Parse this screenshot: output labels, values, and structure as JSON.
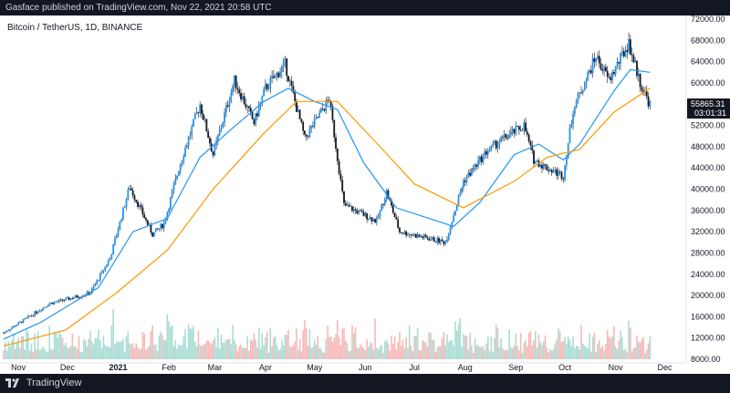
{
  "header": {
    "published": "Gasface published on TradingView.com, Nov 22, 2021 20:58 UTC"
  },
  "footer": {
    "brand": "TradingView"
  },
  "chart_data": {
    "type": "candlestick",
    "symbol_label": "Bitcoin / TetherUS, 1D, BINANCE",
    "y_ticks": [
      "72000.00",
      "68000.00",
      "64000.00",
      "60000.00",
      "56000.00",
      "52000.00",
      "48000.00",
      "44000.00",
      "40000.00",
      "36000.00",
      "32000.00",
      "28000.00",
      "24000.00",
      "20000.00",
      "16000.00",
      "12000.00",
      "8000.00"
    ],
    "y_range": [
      8000,
      72000
    ],
    "x_ticks": [
      {
        "label": "Nov",
        "date": "2020-11-01"
      },
      {
        "label": "Dec",
        "date": "2020-12-01"
      },
      {
        "label": "2021",
        "date": "2021-01-01",
        "bold": true
      },
      {
        "label": "Feb",
        "date": "2021-02-01"
      },
      {
        "label": "Mar",
        "date": "2021-03-01"
      },
      {
        "label": "Apr",
        "date": "2021-04-01"
      },
      {
        "label": "May",
        "date": "2021-05-01"
      },
      {
        "label": "Jun",
        "date": "2021-06-01"
      },
      {
        "label": "Jul",
        "date": "2021-07-01"
      },
      {
        "label": "Aug",
        "date": "2021-08-01"
      },
      {
        "label": "Sep",
        "date": "2021-09-01"
      },
      {
        "label": "Oct",
        "date": "2021-10-01"
      },
      {
        "label": "Nov",
        "date": "2021-11-01"
      },
      {
        "label": "Dec",
        "date": "2021-12-01"
      }
    ],
    "x_range": [
      "2020-10-23",
      "2021-12-13"
    ],
    "last_price": "55865.31",
    "countdown": "03:01:31",
    "price_path": [
      [
        "2020-10-23",
        13000
      ],
      [
        "2020-11-05",
        15500
      ],
      [
        "2020-11-20",
        18500
      ],
      [
        "2020-11-30",
        19200
      ],
      [
        "2020-12-15",
        20500
      ],
      [
        "2020-12-27",
        27000
      ],
      [
        "2021-01-08",
        40500
      ],
      [
        "2021-01-15",
        36000
      ],
      [
        "2021-01-22",
        31500
      ],
      [
        "2021-01-29",
        33500
      ],
      [
        "2021-02-08",
        45000
      ],
      [
        "2021-02-20",
        56000
      ],
      [
        "2021-02-28",
        46500
      ],
      [
        "2021-03-13",
        60500
      ],
      [
        "2021-03-25",
        52500
      ],
      [
        "2021-04-01",
        59000
      ],
      [
        "2021-04-13",
        63500
      ],
      [
        "2021-04-25",
        49500
      ],
      [
        "2021-05-10",
        57000
      ],
      [
        "2021-05-19",
        37000
      ],
      [
        "2021-06-08",
        34000
      ],
      [
        "2021-06-14",
        39500
      ],
      [
        "2021-06-22",
        32000
      ],
      [
        "2021-07-20",
        30000
      ],
      [
        "2021-07-31",
        41500
      ],
      [
        "2021-08-14",
        47000
      ],
      [
        "2021-08-22",
        49000
      ],
      [
        "2021-09-06",
        52000
      ],
      [
        "2021-09-12",
        45500
      ],
      [
        "2021-09-20",
        44000
      ],
      [
        "2021-09-30",
        42500
      ],
      [
        "2021-10-06",
        55000
      ],
      [
        "2021-10-20",
        65000
      ],
      [
        "2021-10-28",
        60500
      ],
      [
        "2021-11-09",
        67500
      ],
      [
        "2021-11-16",
        60000
      ],
      [
        "2021-11-22",
        55865
      ]
    ],
    "series": [
      {
        "type": "ma",
        "color": "#2196f3",
        "points": [
          [
            "2020-10-23",
            11800
          ],
          [
            "2020-11-15",
            15000
          ],
          [
            "2020-12-01",
            18000
          ],
          [
            "2020-12-20",
            21500
          ],
          [
            "2021-01-10",
            32000
          ],
          [
            "2021-01-31",
            34500
          ],
          [
            "2021-02-20",
            46000
          ],
          [
            "2021-03-10",
            51000
          ],
          [
            "2021-03-31",
            56500
          ],
          [
            "2021-04-15",
            59000
          ],
          [
            "2021-05-01",
            56500
          ],
          [
            "2021-05-15",
            55000
          ],
          [
            "2021-05-31",
            45000
          ],
          [
            "2021-06-20",
            36500
          ],
          [
            "2021-07-10",
            34500
          ],
          [
            "2021-07-25",
            33000
          ],
          [
            "2021-08-10",
            37500
          ],
          [
            "2021-08-31",
            46500
          ],
          [
            "2021-09-15",
            48500
          ],
          [
            "2021-09-30",
            45500
          ],
          [
            "2021-10-10",
            48500
          ],
          [
            "2021-10-31",
            58500
          ],
          [
            "2021-11-10",
            62500
          ],
          [
            "2021-11-22",
            62000
          ]
        ]
      },
      {
        "type": "ma",
        "color": "#ff9800",
        "points": [
          [
            "2020-10-23",
            10500
          ],
          [
            "2020-11-30",
            13500
          ],
          [
            "2020-12-31",
            20500
          ],
          [
            "2021-01-31",
            28500
          ],
          [
            "2021-02-28",
            40000
          ],
          [
            "2021-03-31",
            50500
          ],
          [
            "2021-04-20",
            56500
          ],
          [
            "2021-05-15",
            56500
          ],
          [
            "2021-06-10",
            48000
          ],
          [
            "2021-07-01",
            41000
          ],
          [
            "2021-07-31",
            36500
          ],
          [
            "2021-08-31",
            41500
          ],
          [
            "2021-09-20",
            46000
          ],
          [
            "2021-10-10",
            47500
          ],
          [
            "2021-10-31",
            54500
          ],
          [
            "2021-11-22",
            59000
          ]
        ]
      }
    ]
  },
  "colors": {
    "up": "#2196f3",
    "down": "#131722",
    "vol_up": "#a9ddd4",
    "vol_down": "#f8b8b8",
    "ma_fast": "#2196f3",
    "ma_slow": "#ff9800",
    "bar": "#131722"
  }
}
